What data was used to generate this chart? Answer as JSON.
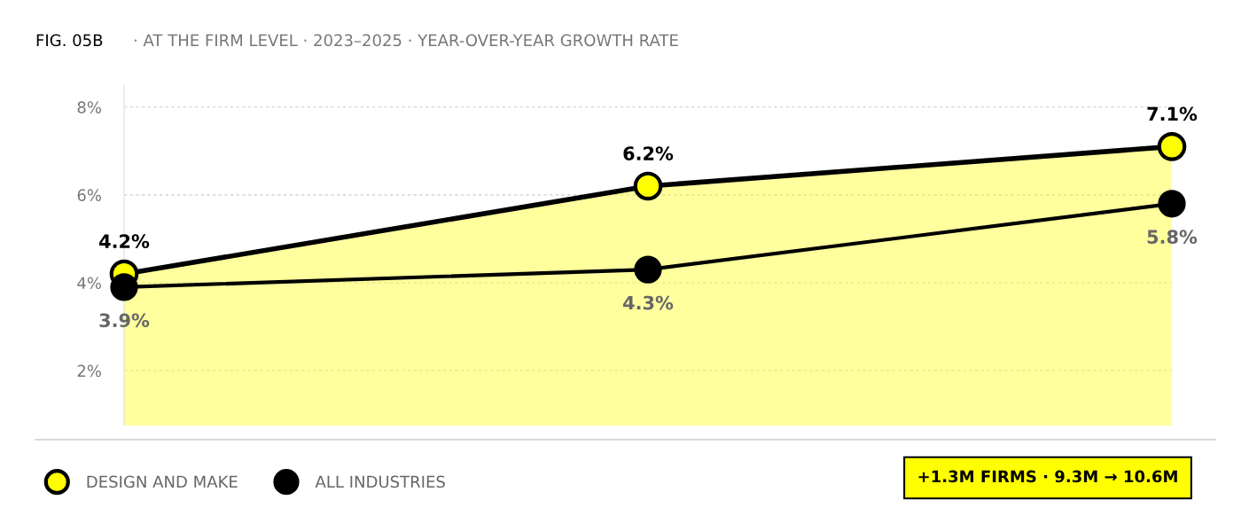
{
  "chart_data": {
    "type": "line",
    "title": "FIG. 05B",
    "subtitle": "· AT THE FIRM LEVEL · 2023–2025 · YEAR-OVER-YEAR GROWTH RATE",
    "categories": [
      null,
      null,
      null
    ],
    "series": [
      {
        "name": "DESIGN AND MAKE",
        "type": "area",
        "color": "#ffff00",
        "values": [
          4.2,
          6.2,
          7.1
        ],
        "value_labels": [
          "4.2%",
          "6.2%",
          "7.1%"
        ]
      },
      {
        "name": "ALL INDUSTRIES",
        "type": "line",
        "color": "#000000",
        "values": [
          3.9,
          4.3,
          5.8
        ],
        "value_labels": [
          "3.9%",
          "4.3%",
          "5.8%"
        ]
      }
    ],
    "ylim": [
      0.75,
      8.5
    ],
    "yticks": [
      {
        "value": 2,
        "label": "2%"
      },
      {
        "value": 4,
        "label": "4%"
      },
      {
        "value": 6,
        "label": "6%"
      },
      {
        "value": 8,
        "label": "8%"
      }
    ],
    "grid": "y",
    "marker": "circle",
    "legend": "bottom left",
    "annotations": [
      "+1.3M FIRMS · 9.3M → 10.6M"
    ]
  }
}
